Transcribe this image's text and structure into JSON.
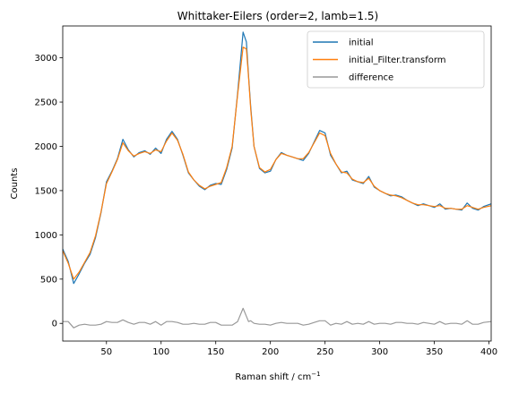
{
  "chart_data": {
    "type": "line",
    "title": "Whittaker-Eilers (order=2, lamb=1.5)",
    "xlabel": "Raman shift / cm",
    "xlabel_sup": "−1",
    "ylabel": "Counts",
    "xlim": [
      10,
      402
    ],
    "ylim": [
      -200,
      3360
    ],
    "x_ticks": [
      50,
      100,
      150,
      200,
      250,
      300,
      350,
      400
    ],
    "y_ticks": [
      0,
      500,
      1000,
      1500,
      2000,
      2500,
      3000
    ],
    "grid": false,
    "legend_position": "upper right",
    "series": [
      {
        "name": "initial",
        "color": "#1f77b4",
        "x": [
          10,
          15,
          20,
          25,
          30,
          35,
          40,
          45,
          50,
          55,
          60,
          65,
          70,
          75,
          80,
          85,
          90,
          95,
          100,
          105,
          110,
          115,
          120,
          125,
          130,
          135,
          140,
          145,
          150,
          155,
          160,
          165,
          170,
          175,
          178,
          180,
          182,
          185,
          190,
          195,
          200,
          205,
          210,
          215,
          220,
          225,
          230,
          235,
          240,
          245,
          250,
          255,
          260,
          265,
          270,
          275,
          280,
          285,
          290,
          295,
          300,
          305,
          310,
          315,
          320,
          325,
          330,
          335,
          340,
          345,
          350,
          355,
          360,
          365,
          370,
          375,
          380,
          385,
          390,
          395,
          402
        ],
        "y": [
          840,
          700,
          450,
          560,
          680,
          780,
          970,
          1250,
          1600,
          1720,
          1860,
          2080,
          1960,
          1880,
          1930,
          1950,
          1910,
          1980,
          1920,
          2080,
          2170,
          2080,
          1900,
          1700,
          1620,
          1550,
          1510,
          1560,
          1580,
          1570,
          1740,
          1980,
          2600,
          3290,
          3180,
          2800,
          2450,
          2000,
          1750,
          1700,
          1720,
          1850,
          1930,
          1900,
          1880,
          1860,
          1840,
          1920,
          2050,
          2180,
          2150,
          1900,
          1800,
          1700,
          1720,
          1620,
          1600,
          1580,
          1660,
          1540,
          1500,
          1470,
          1440,
          1450,
          1430,
          1390,
          1360,
          1330,
          1350,
          1330,
          1310,
          1350,
          1290,
          1300,
          1290,
          1280,
          1360,
          1300,
          1280,
          1320,
          1350
        ]
      },
      {
        "name": "initial_Filter.transform",
        "color": "#ff7f0e",
        "x": [
          10,
          15,
          20,
          25,
          30,
          35,
          40,
          45,
          50,
          55,
          60,
          65,
          70,
          75,
          80,
          85,
          90,
          95,
          100,
          105,
          110,
          115,
          120,
          125,
          130,
          135,
          140,
          145,
          150,
          155,
          160,
          165,
          170,
          175,
          178,
          180,
          182,
          185,
          190,
          195,
          200,
          205,
          210,
          215,
          220,
          225,
          230,
          235,
          240,
          245,
          250,
          255,
          260,
          265,
          270,
          275,
          280,
          285,
          290,
          295,
          300,
          305,
          310,
          315,
          320,
          325,
          330,
          335,
          340,
          345,
          350,
          355,
          360,
          365,
          370,
          375,
          380,
          385,
          390,
          395,
          402
        ],
        "y": [
          820,
          680,
          500,
          580,
          690,
          800,
          990,
          1260,
          1580,
          1710,
          1850,
          2040,
          1950,
          1890,
          1920,
          1940,
          1920,
          1960,
          1940,
          2060,
          2150,
          2070,
          1910,
          1710,
          1620,
          1560,
          1520,
          1550,
          1570,
          1590,
          1760,
          2000,
          2580,
          3120,
          3100,
          2780,
          2420,
          2000,
          1760,
          1710,
          1740,
          1850,
          1920,
          1900,
          1880,
          1860,
          1860,
          1930,
          2040,
          2150,
          2120,
          1920,
          1800,
          1710,
          1700,
          1630,
          1600,
          1590,
          1640,
          1550,
          1500,
          1470,
          1450,
          1440,
          1420,
          1390,
          1360,
          1340,
          1340,
          1330,
          1320,
          1330,
          1300,
          1300,
          1290,
          1290,
          1330,
          1310,
          1290,
          1310,
          1330
        ]
      },
      {
        "name": "difference",
        "color": "#999999",
        "x": [
          10,
          15,
          20,
          25,
          30,
          35,
          40,
          45,
          50,
          55,
          60,
          65,
          70,
          75,
          80,
          85,
          90,
          95,
          100,
          105,
          110,
          115,
          120,
          125,
          130,
          135,
          140,
          145,
          150,
          155,
          160,
          165,
          170,
          175,
          178,
          180,
          182,
          185,
          190,
          195,
          200,
          205,
          210,
          215,
          220,
          225,
          230,
          235,
          240,
          245,
          250,
          255,
          260,
          265,
          270,
          275,
          280,
          285,
          290,
          295,
          300,
          305,
          310,
          315,
          320,
          325,
          330,
          335,
          340,
          345,
          350,
          355,
          360,
          365,
          370,
          375,
          380,
          385,
          390,
          395,
          402
        ],
        "y": [
          20,
          20,
          -50,
          -20,
          -10,
          -20,
          -20,
          -10,
          20,
          10,
          10,
          40,
          10,
          -10,
          10,
          10,
          -10,
          20,
          -20,
          20,
          20,
          10,
          -10,
          -10,
          0,
          -10,
          -10,
          10,
          10,
          -20,
          -20,
          -20,
          20,
          170,
          80,
          20,
          30,
          0,
          -10,
          -10,
          -20,
          0,
          10,
          0,
          0,
          0,
          -20,
          -10,
          10,
          30,
          30,
          -20,
          0,
          -10,
          20,
          -10,
          0,
          -10,
          20,
          -10,
          0,
          0,
          -10,
          10,
          10,
          0,
          0,
          -10,
          10,
          0,
          -10,
          20,
          -10,
          0,
          0,
          -10,
          30,
          -10,
          -10,
          10,
          20
        ]
      }
    ]
  }
}
